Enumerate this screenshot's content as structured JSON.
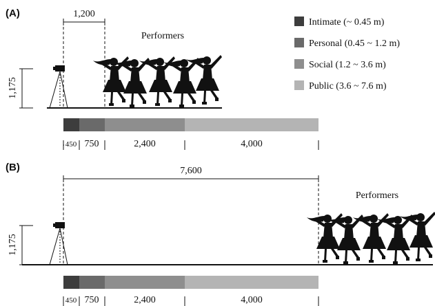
{
  "legend": {
    "items": [
      {
        "label": "Intimate (~ 0.45 m)",
        "color": "#3d3d3d"
      },
      {
        "label": "Personal (0.45 ~ 1.2 m)",
        "color": "#6a6a6a"
      },
      {
        "label": "Social (1.2 ~ 3.6 m)",
        "color": "#8e8e8e"
      },
      {
        "label": "Public (3.6 ~ 7.6 m)",
        "color": "#b4b4b4"
      }
    ]
  },
  "panels": [
    {
      "label": "(A)",
      "distance": "1,200",
      "camera_height": "1,175",
      "performers": "Performers",
      "segments": [
        "450",
        "750",
        "2,400",
        "4,000"
      ]
    },
    {
      "label": "(B)",
      "distance": "7,600",
      "camera_height": "1,175",
      "performers": "Performers",
      "segments": [
        "450",
        "750",
        "2,400",
        "4,000"
      ]
    }
  ]
}
